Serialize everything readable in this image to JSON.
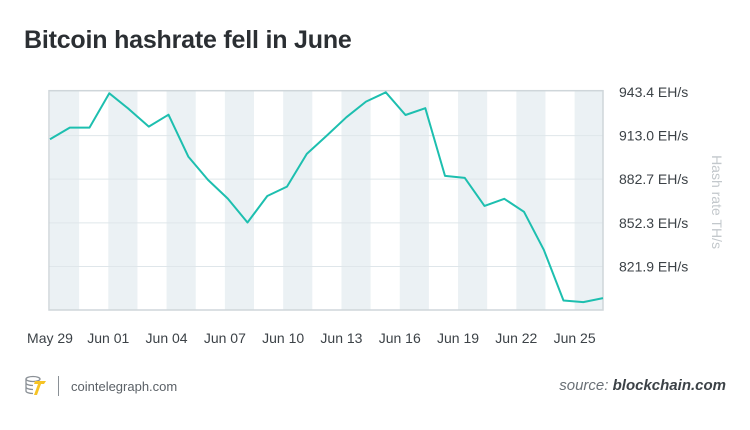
{
  "chart_data": {
    "type": "line",
    "title": "Bitcoin hashrate fell in June",
    "ylabel": "Hash rate TH/s",
    "y_axis_position": "right",
    "ytick_labels": [
      "943.4 EH/s",
      "913.0 EH/s",
      "882.7 EH/s",
      "852.3 EH/s",
      "821.9 EH/s"
    ],
    "yticks": [
      943.4,
      913.0,
      882.7,
      852.3,
      821.9
    ],
    "ylim": [
      791.6,
      944.3
    ],
    "xtick_labels": [
      "May 29",
      "Jun 01",
      "Jun 04",
      "Jun 07",
      "Jun 10",
      "Jun 13",
      "Jun 16",
      "Jun 19",
      "Jun 22",
      "Jun 25"
    ],
    "grid": "horizontal lines + alternating vertical bands",
    "line_color": "#1dbfaf",
    "band_color": "#ebf1f4",
    "values": [
      910.5,
      918.6,
      918.6,
      942.5,
      931.4,
      919.3,
      927.6,
      898.4,
      882.2,
      869.2,
      852.5,
      871.0,
      877.5,
      900.3,
      912.8,
      925.8,
      936.7,
      943.2,
      927.4,
      932.1,
      885.0,
      883.6,
      864.1,
      869.0,
      860.0,
      833.5,
      798.2,
      797.1,
      799.9
    ]
  },
  "footer": {
    "site": "cointelegraph.com",
    "source_prefix": "source:",
    "source_name": "blockchain.com"
  }
}
